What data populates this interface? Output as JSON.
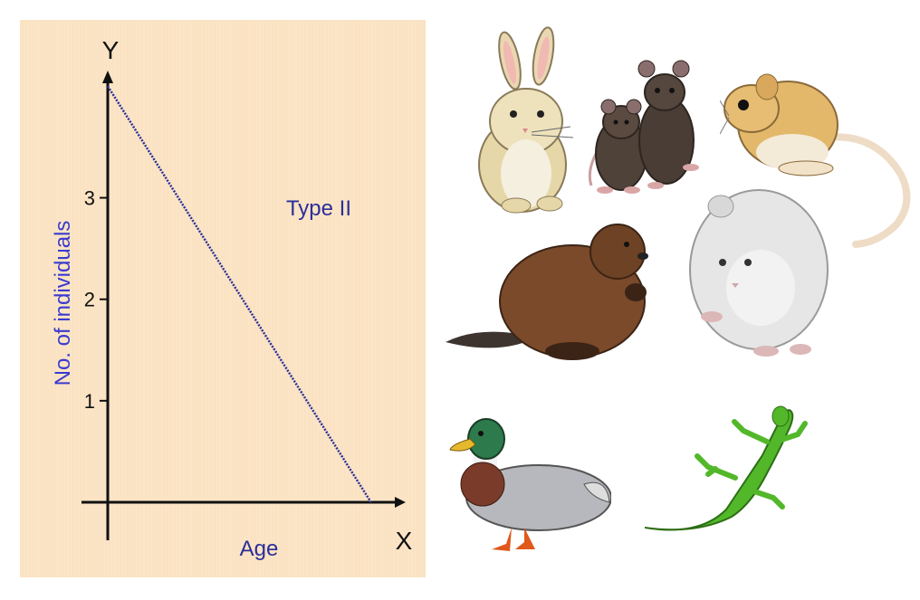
{
  "chart_data": {
    "type": "line",
    "xlabel": "Age",
    "ylabel": "No. of individuals",
    "x_axis_letter": "X",
    "y_axis_letter": "Y",
    "yticks": [
      "1",
      "2",
      "3"
    ],
    "ylim": [
      0,
      4.2
    ],
    "xlim": [
      0,
      1
    ],
    "annotation": "Type II",
    "series": [
      {
        "x": [
          0,
          0.9
        ],
        "y": [
          4.1,
          0
        ],
        "color": "#2b2f9a",
        "style": "dotted"
      }
    ],
    "grid": false
  },
  "colors": {
    "panel_bg": "#fbe5c6",
    "axis": "#111111",
    "text_blue": "#2b2f9a",
    "ylabel_blue": "#3a3ad0"
  },
  "illustrations": [
    "rabbit",
    "rats",
    "kangaroo-rat",
    "beaver",
    "pika",
    "mallard-duck",
    "lizard"
  ]
}
